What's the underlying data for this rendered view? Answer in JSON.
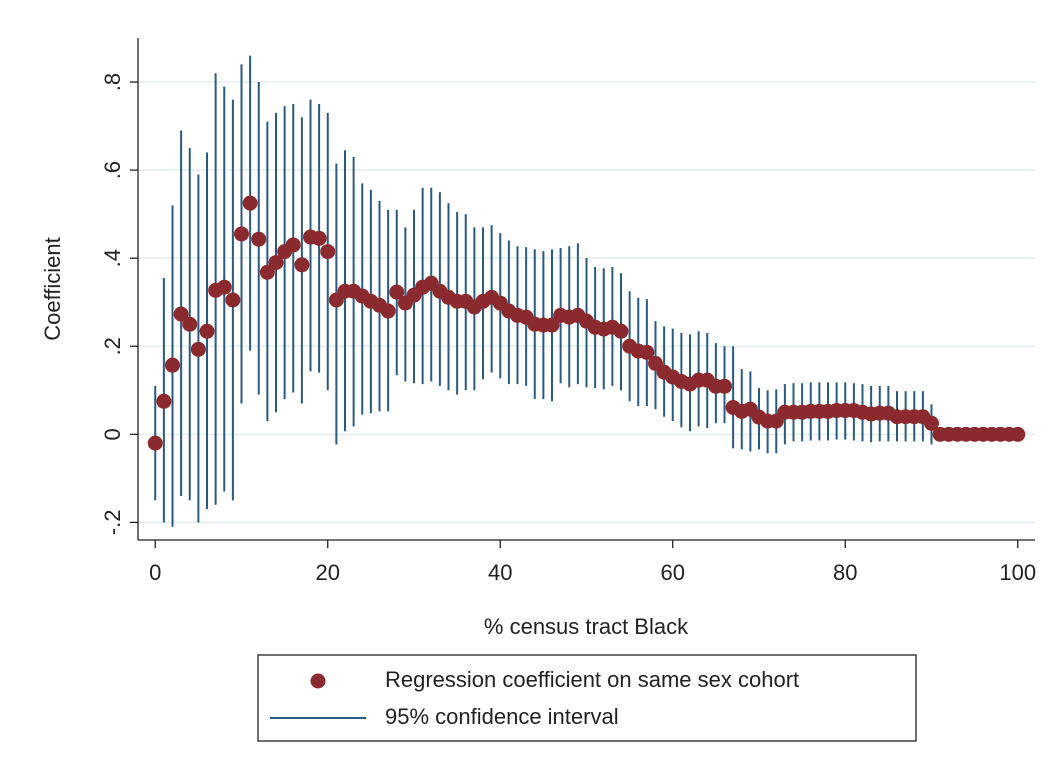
{
  "chart_data": {
    "type": "scatter",
    "x_label": "% census tract Black",
    "y_label": "Coefficient",
    "xlim": [
      -2,
      102
    ],
    "ylim": [
      -0.24,
      0.9
    ],
    "xticks": [
      0,
      20,
      40,
      60,
      80,
      100
    ],
    "yticks": [
      {
        "value": -0.2,
        "label": "-.2"
      },
      0,
      {
        "value": 0.2,
        "label": ".2"
      },
      {
        "value": 0.4,
        "label": ".4"
      },
      {
        "value": 0.6,
        "label": ".6"
      },
      {
        "value": 0.8,
        "label": ".8"
      }
    ],
    "grid": true,
    "x": [
      0,
      1,
      2,
      3,
      4,
      5,
      6,
      7,
      8,
      9,
      10,
      11,
      12,
      13,
      14,
      15,
      16,
      17,
      18,
      19,
      20,
      21,
      22,
      23,
      24,
      25,
      26,
      27,
      28,
      29,
      30,
      31,
      32,
      33,
      34,
      35,
      36,
      37,
      38,
      39,
      40,
      41,
      42,
      43,
      44,
      45,
      46,
      47,
      48,
      49,
      50,
      51,
      52,
      53,
      54,
      55,
      56,
      57,
      58,
      59,
      60,
      61,
      62,
      63,
      64,
      65,
      66,
      67,
      68,
      69,
      70,
      71,
      72,
      73,
      74,
      75,
      76,
      77,
      78,
      79,
      80,
      81,
      82,
      83,
      84,
      85,
      86,
      87,
      88,
      89,
      90,
      91,
      92,
      93,
      94,
      95,
      96,
      97,
      98,
      99,
      100
    ],
    "series": [
      {
        "name": "Regression coefficient on same sex cohort",
        "color": "#8b2a2e",
        "values": [
          -0.02,
          0.075,
          0.157,
          0.273,
          0.25,
          0.193,
          0.234,
          0.327,
          0.334,
          0.305,
          0.455,
          0.525,
          0.443,
          0.368,
          0.39,
          0.415,
          0.43,
          0.385,
          0.448,
          0.445,
          0.415,
          0.305,
          0.325,
          0.325,
          0.314,
          0.302,
          0.293,
          0.28,
          0.323,
          0.298,
          0.316,
          0.334,
          0.343,
          0.325,
          0.311,
          0.302,
          0.302,
          0.289,
          0.302,
          0.311,
          0.298,
          0.28,
          0.27,
          0.266,
          0.25,
          0.248,
          0.248,
          0.27,
          0.266,
          0.27,
          0.257,
          0.243,
          0.239,
          0.243,
          0.234,
          0.2,
          0.189,
          0.186,
          0.161,
          0.141,
          0.13,
          0.12,
          0.114,
          0.123,
          0.123,
          0.109,
          0.109,
          0.061,
          0.052,
          0.057,
          0.039,
          0.03,
          0.03,
          0.05,
          0.05,
          0.05,
          0.052,
          0.052,
          0.052,
          0.054,
          0.054,
          0.054,
          0.05,
          0.046,
          0.048,
          0.048,
          0.04,
          0.04,
          0.04,
          0.04,
          0.025,
          0,
          0,
          0,
          0,
          0,
          0,
          0,
          0,
          0,
          0
        ]
      }
    ],
    "ci": {
      "name": "95% confidence interval",
      "color": "#2b5a80",
      "high": [
        0.11,
        0.355,
        0.52,
        0.69,
        0.65,
        0.59,
        0.64,
        0.82,
        0.79,
        0.76,
        0.84,
        0.86,
        0.8,
        0.71,
        0.73,
        0.745,
        0.75,
        0.72,
        0.76,
        0.75,
        0.73,
        0.615,
        0.645,
        0.63,
        0.57,
        0.555,
        0.53,
        0.51,
        0.51,
        0.47,
        0.51,
        0.56,
        0.56,
        0.55,
        0.525,
        0.505,
        0.5,
        0.47,
        0.47,
        0.475,
        0.457,
        0.44,
        0.427,
        0.425,
        0.42,
        0.416,
        0.42,
        0.423,
        0.427,
        0.434,
        0.4,
        0.38,
        0.377,
        0.38,
        0.366,
        0.325,
        0.31,
        0.307,
        0.257,
        0.245,
        0.24,
        0.23,
        0.227,
        0.234,
        0.23,
        0.207,
        0.2,
        0.2,
        0.148,
        0.143,
        0.105,
        0.1,
        0.102,
        0.114,
        0.116,
        0.116,
        0.118,
        0.118,
        0.118,
        0.118,
        0.118,
        0.116,
        0.114,
        0.11,
        0.11,
        0.11,
        0.098,
        0.098,
        0.098,
        0.098,
        0.068,
        0.003,
        0.003,
        0.003,
        0.003,
        0.003,
        0.003,
        0.003,
        0.003,
        0.003,
        0.003
      ],
      "low": [
        -0.15,
        -0.2,
        -0.21,
        -0.14,
        -0.15,
        -0.2,
        -0.17,
        -0.16,
        -0.13,
        -0.15,
        0.07,
        0.19,
        0.09,
        0.03,
        0.05,
        0.08,
        0.095,
        0.07,
        0.143,
        0.14,
        0.1,
        -0.023,
        0.007,
        0.018,
        0.045,
        0.048,
        0.052,
        0.052,
        0.134,
        0.12,
        0.116,
        0.114,
        0.12,
        0.11,
        0.1,
        0.09,
        0.1,
        0.1,
        0.125,
        0.14,
        0.127,
        0.114,
        0.114,
        0.11,
        0.08,
        0.08,
        0.075,
        0.116,
        0.107,
        0.114,
        0.107,
        0.105,
        0.102,
        0.11,
        0.1,
        0.075,
        0.064,
        0.064,
        0.057,
        0.04,
        0.03,
        0.016,
        0.007,
        0.018,
        0.014,
        0.025,
        0.025,
        -0.032,
        -0.034,
        -0.039,
        -0.034,
        -0.043,
        -0.043,
        -0.023,
        -0.016,
        -0.016,
        -0.014,
        -0.014,
        -0.014,
        -0.012,
        -0.012,
        -0.014,
        -0.016,
        -0.018,
        -0.016,
        -0.016,
        -0.016,
        -0.016,
        -0.016,
        -0.016,
        -0.023,
        -0.003,
        -0.003,
        -0.003,
        -0.003,
        -0.003,
        -0.003,
        -0.003,
        -0.003,
        -0.003,
        -0.003
      ]
    }
  }
}
